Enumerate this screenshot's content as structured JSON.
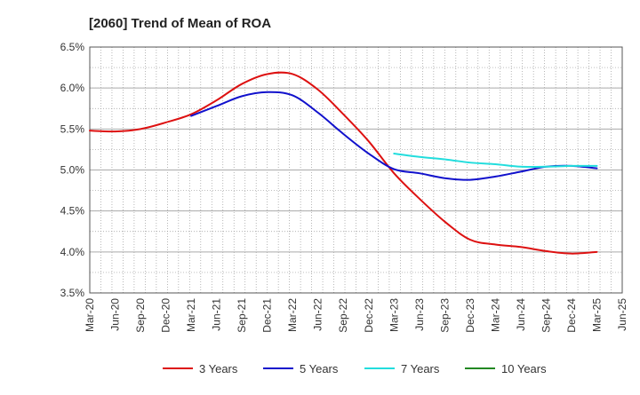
{
  "chart_data": {
    "type": "line",
    "title": "[2060]  Trend of Mean of ROA",
    "xlabel": "",
    "ylabel": "",
    "ylim": [
      3.5,
      6.5
    ],
    "y_ticks": [
      "6.5%",
      "6.0%",
      "5.5%",
      "5.0%",
      "4.5%",
      "4.0%",
      "3.5%"
    ],
    "y_tick_values": [
      6.5,
      6.0,
      5.5,
      5.0,
      4.5,
      4.0,
      3.5
    ],
    "x_tick_labels": [
      "Mar-20",
      "Jun-20",
      "Sep-20",
      "Dec-20",
      "Mar-21",
      "Jun-21",
      "Sep-21",
      "Dec-21",
      "Mar-22",
      "Jun-22",
      "Sep-22",
      "Dec-22",
      "Mar-23",
      "Jun-23",
      "Sep-23",
      "Dec-23",
      "Mar-24",
      "Jun-24",
      "Sep-24",
      "Dec-24",
      "Mar-25",
      "Jun-25"
    ],
    "grid": true,
    "legend_position": "bottom",
    "series": [
      {
        "name": "3 Years",
        "color": "#dd1111",
        "start_index": 0,
        "values": [
          5.48,
          5.47,
          5.5,
          5.58,
          5.68,
          5.85,
          6.05,
          6.17,
          6.17,
          5.98,
          5.68,
          5.35,
          4.96,
          4.65,
          4.37,
          4.15,
          4.09,
          4.06,
          4.01,
          3.98,
          4.0
        ]
      },
      {
        "name": "5 Years",
        "color": "#1111cc",
        "start_index": 4,
        "values": [
          5.66,
          5.78,
          5.9,
          5.95,
          5.91,
          5.7,
          5.44,
          5.2,
          5.01,
          4.96,
          4.9,
          4.88,
          4.92,
          4.98,
          5.04,
          5.05,
          5.02
        ]
      },
      {
        "name": "7 Years",
        "color": "#22dddd",
        "start_index": 12,
        "values": [
          5.2,
          5.16,
          5.13,
          5.09,
          5.07,
          5.04,
          5.04,
          5.05,
          5.05
        ]
      },
      {
        "name": "10 Years",
        "color": "#228822",
        "start_index": 0,
        "values": []
      }
    ]
  }
}
